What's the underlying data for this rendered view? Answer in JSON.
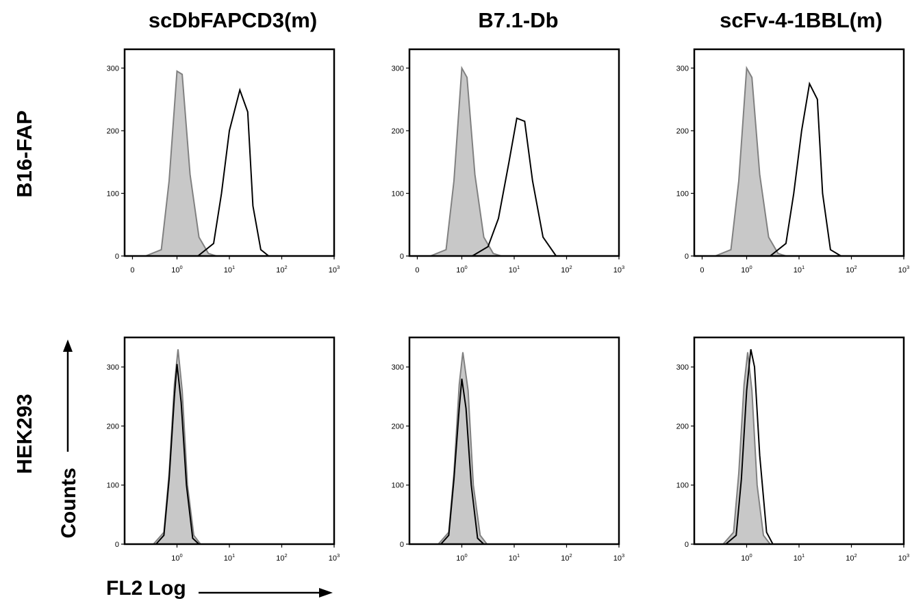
{
  "figure": {
    "x_axis_label": "FL2 Log",
    "y_axis_label": "Counts",
    "columns": [
      "scDbFAPCD3(m)",
      "B7.1-Db",
      "scFv-4-1BBL(m)"
    ],
    "rows": [
      "B16-FAP",
      "HEK293"
    ]
  },
  "colors": {
    "control_fill": "#c8c8c8",
    "control_line": "#808080",
    "sample_line": "#000000"
  },
  "chart_data": [
    {
      "type": "area",
      "row": "B16-FAP",
      "column": "scDbFAPCD3(m)",
      "x_scale": "log",
      "x_ticks": [
        "0",
        "10^0",
        "10^1",
        "10^2",
        "10^3"
      ],
      "y_ticks": [
        0,
        100,
        200,
        300
      ],
      "ylim": [
        0,
        330
      ],
      "xlim_log10": [
        -1.0,
        3.0
      ],
      "series": [
        {
          "x": [
            -0.6,
            -0.3,
            -0.15,
            0.0,
            0.1,
            0.25,
            0.42,
            0.6,
            0.75
          ],
          "y": [
            0,
            10,
            120,
            295,
            290,
            130,
            30,
            4,
            0
          ]
        },
        {
          "x": [
            0.4,
            0.7,
            0.85,
            1.0,
            1.2,
            1.35,
            1.45,
            1.6,
            1.75
          ],
          "y": [
            0,
            20,
            100,
            200,
            265,
            230,
            80,
            10,
            0
          ]
        }
      ]
    },
    {
      "type": "area",
      "row": "B16-FAP",
      "column": "B7.1-Db",
      "x_scale": "log",
      "x_ticks": [
        "0",
        "10^0",
        "10^1",
        "10^2",
        "10^3"
      ],
      "y_ticks": [
        0,
        100,
        200,
        300
      ],
      "ylim": [
        0,
        330
      ],
      "xlim_log10": [
        -1.0,
        3.0
      ],
      "series": [
        {
          "x": [
            -0.6,
            -0.3,
            -0.15,
            0.0,
            0.1,
            0.25,
            0.42,
            0.6,
            0.75
          ],
          "y": [
            0,
            10,
            120,
            300,
            285,
            130,
            30,
            4,
            0
          ]
        },
        {
          "x": [
            0.2,
            0.5,
            0.7,
            0.9,
            1.05,
            1.2,
            1.35,
            1.55,
            1.8
          ],
          "y": [
            0,
            15,
            60,
            150,
            220,
            215,
            120,
            30,
            0
          ]
        }
      ]
    },
    {
      "type": "area",
      "row": "B16-FAP",
      "column": "scFv-4-1BBL(m)",
      "x_scale": "log",
      "x_ticks": [
        "0",
        "10^0",
        "10^1",
        "10^2",
        "10^3"
      ],
      "y_ticks": [
        0,
        100,
        200,
        300
      ],
      "ylim": [
        0,
        330
      ],
      "xlim_log10": [
        -1.0,
        3.0
      ],
      "series": [
        {
          "x": [
            -0.6,
            -0.3,
            -0.15,
            0.0,
            0.1,
            0.25,
            0.42,
            0.6,
            0.75
          ],
          "y": [
            0,
            10,
            120,
            300,
            285,
            130,
            30,
            4,
            0
          ]
        },
        {
          "x": [
            0.45,
            0.75,
            0.9,
            1.05,
            1.2,
            1.35,
            1.45,
            1.6,
            1.8
          ],
          "y": [
            0,
            20,
            100,
            200,
            275,
            250,
            100,
            10,
            0
          ]
        }
      ]
    },
    {
      "type": "area",
      "row": "HEK293",
      "column": "scDbFAPCD3(m)",
      "x_scale": "log",
      "x_ticks": [
        "10^0",
        "10^1",
        "10^2",
        "10^3"
      ],
      "y_ticks": [
        0,
        100,
        200,
        300
      ],
      "ylim": [
        0,
        350
      ],
      "xlim_log10": [
        -1.0,
        3.0
      ],
      "series": [
        {
          "x": [
            -0.45,
            -0.25,
            -0.15,
            -0.05,
            0.02,
            0.1,
            0.2,
            0.32,
            0.45
          ],
          "y": [
            0,
            20,
            120,
            270,
            330,
            260,
            100,
            15,
            0
          ]
        },
        {
          "x": [
            -0.4,
            -0.25,
            -0.15,
            -0.05,
            0.0,
            0.08,
            0.18,
            0.3,
            0.42
          ],
          "y": [
            0,
            15,
            110,
            250,
            305,
            240,
            100,
            10,
            0
          ]
        }
      ]
    },
    {
      "type": "area",
      "row": "HEK293",
      "column": "B7.1-Db",
      "x_scale": "log",
      "x_ticks": [
        "10^0",
        "10^1",
        "10^2",
        "10^3"
      ],
      "y_ticks": [
        0,
        100,
        200,
        300
      ],
      "ylim": [
        0,
        350
      ],
      "xlim_log10": [
        -1.0,
        3.0
      ],
      "series": [
        {
          "x": [
            -0.45,
            -0.25,
            -0.15,
            -0.05,
            0.02,
            0.12,
            0.22,
            0.35,
            0.48
          ],
          "y": [
            0,
            20,
            120,
            270,
            325,
            260,
            100,
            15,
            0
          ]
        },
        {
          "x": [
            -0.4,
            -0.25,
            -0.15,
            -0.05,
            0.0,
            0.08,
            0.18,
            0.3,
            0.42
          ],
          "y": [
            0,
            15,
            110,
            230,
            280,
            230,
            100,
            10,
            0
          ]
        }
      ]
    },
    {
      "type": "area",
      "row": "HEK293",
      "column": "scFv-4-1BBL(m)",
      "x_scale": "log",
      "x_ticks": [
        "10^0",
        "10^1",
        "10^2",
        "10^3"
      ],
      "y_ticks": [
        0,
        100,
        200,
        300
      ],
      "ylim": [
        0,
        350
      ],
      "xlim_log10": [
        -1.0,
        3.0
      ],
      "series": [
        {
          "x": [
            -0.45,
            -0.25,
            -0.15,
            -0.05,
            0.02,
            0.1,
            0.2,
            0.32,
            0.45
          ],
          "y": [
            0,
            20,
            120,
            270,
            325,
            260,
            100,
            15,
            0
          ]
        },
        {
          "x": [
            -0.4,
            -0.2,
            -0.1,
            0.0,
            0.08,
            0.15,
            0.25,
            0.38,
            0.5
          ],
          "y": [
            0,
            15,
            110,
            260,
            330,
            300,
            150,
            20,
            0
          ]
        }
      ]
    }
  ]
}
